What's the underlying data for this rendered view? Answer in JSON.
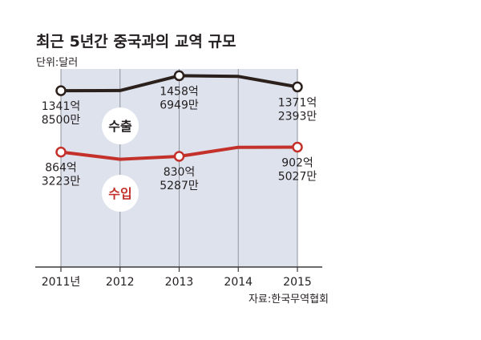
{
  "unit_label": "단위:달러",
  "source": "자료:한국무역협회",
  "chart_data": {
    "type": "line",
    "title": "최근 5년간 중국과의 교역 규모",
    "categories": [
      "2011년",
      "2012",
      "2013",
      "2014",
      "2015"
    ],
    "ylim": [
      0,
      153000000000
    ],
    "grid": "vertical lines at each year",
    "legend": "inline circle badges",
    "band_color": "#dde2ec",
    "series": [
      {
        "name": "수출",
        "color": "#2b201b",
        "values": [
          134185000000,
          134300000000,
          145869490000,
          145300000000,
          137123930000
        ],
        "labels": [
          [
            "1341억",
            "8500만"
          ],
          null,
          [
            "1458억",
            "6949만"
          ],
          null,
          [
            "1371억",
            "2393만"
          ]
        ]
      },
      {
        "name": "수입",
        "color": "#c4312b",
        "values": [
          86432230000,
          80800000000,
          83052870000,
          90100000000,
          90250270000
        ],
        "labels": [
          [
            "864억",
            "3223만"
          ],
          null,
          [
            "830억",
            "5287만"
          ],
          null,
          [
            "902억",
            "5027만"
          ]
        ]
      }
    ]
  }
}
